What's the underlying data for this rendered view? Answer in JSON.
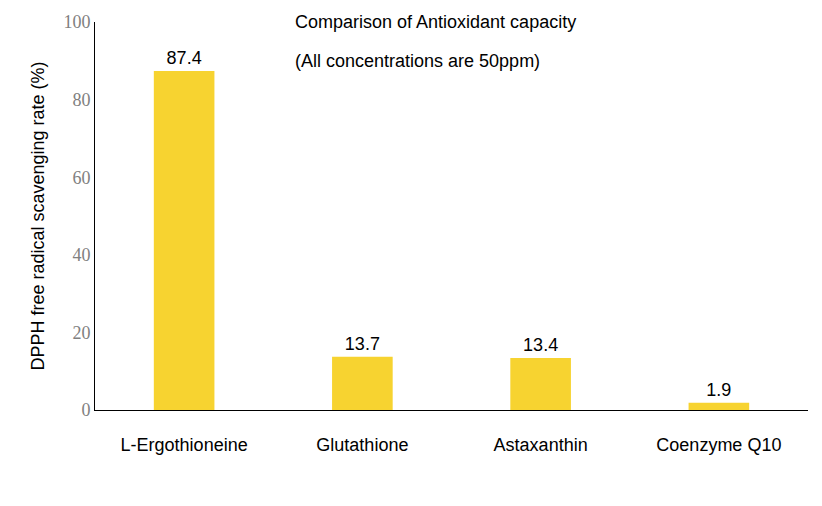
{
  "chart_data": {
    "type": "bar",
    "title": "Comparison of Antioxidant capacity",
    "subtitle": "(All concentrations are 50ppm)",
    "y_label": "DPPH free radical scavenging rate (%)",
    "categories": [
      "L-Ergothioneine",
      "Glutathione",
      "Astaxanthin",
      "Coenzyme Q10"
    ],
    "values": [
      87.4,
      13.7,
      13.4,
      1.9
    ],
    "color": "#f7d330",
    "ylim": [
      0,
      100
    ],
    "yticks": [
      0,
      20,
      40,
      60,
      80,
      100
    ],
    "grid": false,
    "data_labels": true
  }
}
